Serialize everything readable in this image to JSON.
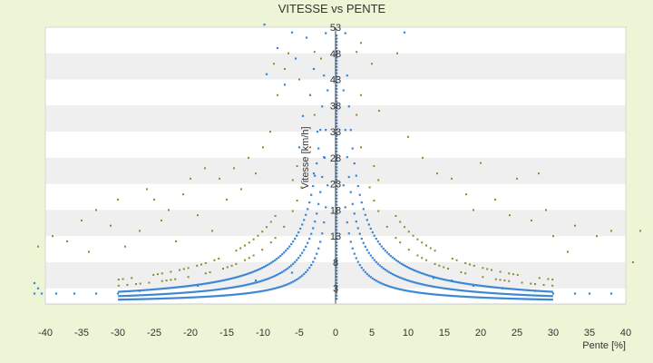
{
  "chart_data": {
    "type": "scatter",
    "title": "VITESSE vs PENTE",
    "xlabel": "Pente [%]",
    "ylabel": "Vitesse [km/h]",
    "xlim": [
      -40,
      40
    ],
    "ylim": [
      0,
      53
    ],
    "x_ticks": [
      -40,
      -35,
      -30,
      -25,
      -20,
      -15,
      -10,
      -5,
      0,
      5,
      10,
      15,
      20,
      25,
      30,
      35,
      40
    ],
    "y_ticks": [
      3,
      8,
      13,
      18,
      23,
      28,
      33,
      38,
      43,
      48,
      53
    ],
    "grid": "horizontal bands",
    "legend": "none",
    "colors": {
      "background": "#eef4d6",
      "band_light": "#ffffff",
      "band_dark": "#efefef",
      "series_blue": "#3a86d4",
      "series_olive": "#8c8a2a",
      "axis": "#444444"
    },
    "series": [
      {
        "color": "#3a86d4",
        "curves": [
          0.25,
          0.45,
          0.7
        ],
        "points": [
          [
            -41.5,
            2
          ],
          [
            -40.5,
            2
          ],
          [
            -38.5,
            2
          ],
          [
            -36,
            2
          ],
          [
            -33,
            2
          ],
          [
            -30,
            2
          ],
          [
            -27,
            2.5
          ],
          [
            -19,
            3.5
          ],
          [
            -11,
            4.5
          ],
          [
            -6,
            6
          ],
          [
            -41,
            3
          ],
          [
            -41.5,
            4
          ],
          [
            38,
            2
          ],
          [
            35,
            2
          ],
          [
            33,
            2
          ],
          [
            30,
            2
          ],
          [
            27.5,
            2.5
          ],
          [
            23,
            3
          ],
          [
            19,
            3.5
          ],
          [
            16,
            4.5
          ],
          [
            13.5,
            5
          ],
          [
            9.5,
            52
          ],
          [
            -9.8,
            53.5
          ],
          [
            -6,
            52
          ],
          [
            -4,
            51
          ],
          [
            -8,
            49
          ],
          [
            -5.5,
            47
          ],
          [
            -3,
            45
          ],
          [
            -9.5,
            44
          ],
          [
            -7,
            42
          ],
          [
            -3.5,
            40
          ],
          [
            -4.5,
            36
          ],
          [
            -2.5,
            33
          ],
          [
            -5,
            30
          ],
          [
            -1.5,
            28
          ],
          [
            -3,
            25
          ]
        ]
      },
      {
        "color": "#8c8a2a",
        "curves": [
          1.05,
          1.4
        ],
        "points": [
          [
            -39,
            13
          ],
          [
            -37,
            12
          ],
          [
            -35,
            16
          ],
          [
            -34,
            10
          ],
          [
            -33,
            18
          ],
          [
            -31,
            15
          ],
          [
            -30,
            20
          ],
          [
            -29,
            11
          ],
          [
            -27,
            14
          ],
          [
            -26,
            22
          ],
          [
            -25,
            20
          ],
          [
            -24,
            16
          ],
          [
            -23,
            18
          ],
          [
            -22,
            12
          ],
          [
            -21,
            21
          ],
          [
            -20,
            24
          ],
          [
            -19,
            17
          ],
          [
            -18,
            26
          ],
          [
            -17,
            14
          ],
          [
            -16,
            24
          ],
          [
            -15,
            20
          ],
          [
            -14,
            26
          ],
          [
            -13,
            22
          ],
          [
            -12,
            28
          ],
          [
            -11,
            25
          ],
          [
            -10,
            30
          ],
          [
            -9,
            33
          ],
          [
            -8,
            40
          ],
          [
            -7,
            45
          ],
          [
            -6.5,
            48
          ],
          [
            -5,
            43
          ],
          [
            -8.5,
            46
          ],
          [
            -2,
            47
          ],
          [
            8.5,
            48
          ],
          [
            5,
            46
          ],
          [
            3.5,
            50
          ],
          [
            6,
            37
          ],
          [
            10,
            32
          ],
          [
            12,
            28
          ],
          [
            14,
            25
          ],
          [
            16,
            24
          ],
          [
            18,
            21
          ],
          [
            19,
            18
          ],
          [
            20,
            27
          ],
          [
            22,
            20
          ],
          [
            24,
            17
          ],
          [
            25,
            24
          ],
          [
            27,
            16
          ],
          [
            28,
            25
          ],
          [
            29,
            18
          ],
          [
            30,
            13
          ],
          [
            32,
            10
          ],
          [
            33,
            15
          ],
          [
            36,
            13
          ],
          [
            38,
            14
          ],
          [
            41,
            8
          ],
          [
            42,
            14
          ],
          [
            -41,
            11
          ]
        ]
      }
    ]
  }
}
